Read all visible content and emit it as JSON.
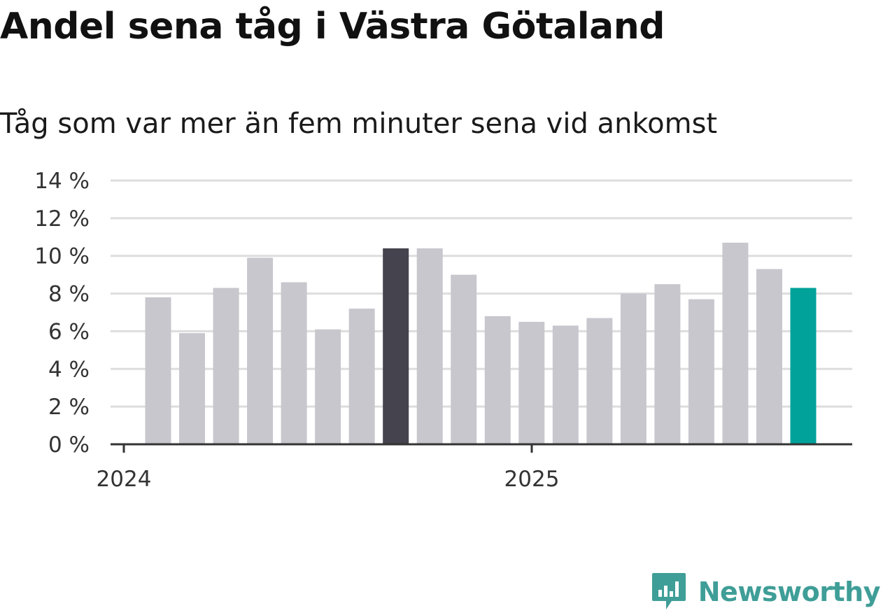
{
  "chart_data": {
    "type": "bar",
    "title": "Andel sena tåg i Västra Götaland",
    "subtitle": "Tåg som var mer än fem minuter sena vid ankomst",
    "xlabel": "",
    "ylabel": "",
    "ylim": [
      0,
      14
    ],
    "y_ticks": [
      0,
      2,
      4,
      6,
      8,
      10,
      12,
      14
    ],
    "y_tick_labels": [
      "0 %",
      "2 %",
      "4 %",
      "6 %",
      "8 %",
      "10 %",
      "12 %",
      "14 %"
    ],
    "x_tick_labels": [
      "2024",
      "2025"
    ],
    "grid": true,
    "categories": [
      "2024-01",
      "2024-02",
      "2024-03",
      "2024-04",
      "2024-05",
      "2024-06",
      "2024-07",
      "2024-08",
      "2024-09",
      "2024-10",
      "2024-11",
      "2024-12",
      "2025-01",
      "2025-02",
      "2025-03",
      "2025-04",
      "2025-05",
      "2025-06",
      "2025-07",
      "2025-08"
    ],
    "values": [
      7.8,
      5.9,
      8.3,
      9.9,
      8.6,
      6.1,
      7.2,
      10.4,
      10.4,
      9.0,
      6.8,
      6.5,
      6.3,
      6.7,
      8.0,
      8.5,
      7.7,
      10.7,
      9.3,
      8.3
    ],
    "highlight": {
      "2024-08": "#45434d",
      "2025-08": "#00a29a"
    },
    "colors": {
      "default_bar": "#c8c7ce",
      "grid": "#dddddd",
      "axis": "#333333"
    }
  },
  "brand": {
    "name": "Newsworthy",
    "color": "#3f9e97",
    "icon": "newsworthy-logo-icon"
  }
}
